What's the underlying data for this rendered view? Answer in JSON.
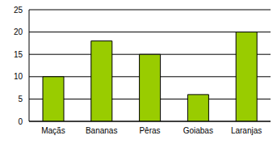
{
  "chart_data": {
    "type": "bar",
    "categories": [
      "Maçãs",
      "Bananas",
      "Pêras",
      "Goiabas",
      "Laranjas"
    ],
    "values": [
      10,
      18,
      15,
      6,
      20
    ],
    "color": "#99cc00",
    "ylim": [
      0,
      25
    ],
    "yticks": [
      0,
      5,
      10,
      15,
      20,
      25
    ],
    "grid": true
  }
}
